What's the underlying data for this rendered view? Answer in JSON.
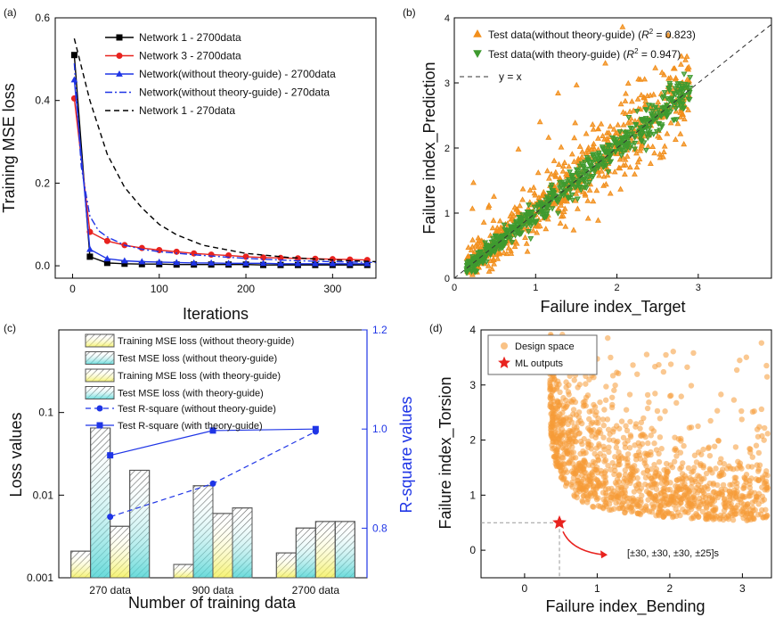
{
  "chart_data": [
    {
      "panel_label": "(a)",
      "type": "line",
      "xlabel": "Iterations",
      "ylabel": "Training MSE loss",
      "xlim": [
        -20,
        350
      ],
      "ylim": [
        -0.03,
        0.6
      ],
      "xticks": [
        "0",
        "100",
        "200",
        "300"
      ],
      "yticks": [
        "0.0",
        "0.2",
        "0.4",
        "0.6"
      ],
      "legend_position": "top-right",
      "series": [
        {
          "name": "Network 1 - 2700data",
          "color": "#000000",
          "dash": "solid",
          "marker": "square",
          "x": [
            2,
            20,
            40,
            60,
            80,
            100,
            120,
            140,
            160,
            180,
            200,
            220,
            240,
            260,
            280,
            300,
            320,
            340
          ],
          "y": [
            0.51,
            0.022,
            0.007,
            0.005,
            0.004,
            0.004,
            0.003,
            0.003,
            0.003,
            0.003,
            0.003,
            0.002,
            0.002,
            0.002,
            0.002,
            0.002,
            0.002,
            0.002
          ]
        },
        {
          "name": "Network 3 - 2700data",
          "color": "#e8231f",
          "dash": "solid",
          "marker": "circle",
          "x": [
            2,
            20,
            40,
            60,
            80,
            100,
            120,
            140,
            160,
            180,
            200,
            220,
            240,
            260,
            280,
            300,
            320,
            340
          ],
          "y": [
            0.405,
            0.082,
            0.06,
            0.05,
            0.043,
            0.038,
            0.034,
            0.03,
            0.027,
            0.025,
            0.022,
            0.02,
            0.019,
            0.018,
            0.017,
            0.016,
            0.015,
            0.014
          ]
        },
        {
          "name": "Network(without theory-guide) - 2700data",
          "color": "#1f35e6",
          "dash": "solid",
          "marker": "triangle",
          "x": [
            2,
            20,
            40,
            60,
            80,
            100,
            120,
            140,
            160,
            180,
            200,
            220,
            240,
            260,
            280,
            300,
            320,
            340
          ],
          "y": [
            0.45,
            0.04,
            0.017,
            0.012,
            0.01,
            0.009,
            0.008,
            0.007,
            0.007,
            0.006,
            0.006,
            0.006,
            0.005,
            0.005,
            0.005,
            0.005,
            0.005,
            0.005
          ]
        },
        {
          "name": "Network(without theory-guide) - 270data",
          "color": "#1f35e6",
          "dash": "dashdot",
          "marker": "none",
          "x": [
            2,
            10,
            20,
            30,
            40,
            60,
            80,
            100,
            150,
            200,
            250,
            300,
            350
          ],
          "y": [
            0.49,
            0.24,
            0.12,
            0.085,
            0.07,
            0.05,
            0.04,
            0.034,
            0.025,
            0.018,
            0.013,
            0.01,
            0.008
          ]
        },
        {
          "name": "Network 1 - 270data",
          "color": "#000000",
          "dash": "dashed",
          "marker": "none",
          "x": [
            2,
            20,
            40,
            60,
            80,
            100,
            120,
            150,
            200,
            250,
            300,
            350
          ],
          "y": [
            0.55,
            0.4,
            0.27,
            0.19,
            0.14,
            0.1,
            0.075,
            0.05,
            0.03,
            0.02,
            0.014,
            0.01
          ]
        }
      ]
    },
    {
      "panel_label": "(b)",
      "type": "scatter",
      "xlabel": "Failure index_Target",
      "ylabel": "Failure index_Prediction",
      "xlim": [
        0,
        3.9
      ],
      "ylim": [
        0,
        4
      ],
      "xticks": [
        "0",
        "1",
        "2",
        "3"
      ],
      "yticks": [
        "0",
        "1",
        "2",
        "3",
        "4"
      ],
      "legend_position": "top",
      "series": [
        {
          "name": "Test data(without theory-guide) (R² = 0.823)",
          "color": "#f28f1c",
          "marker": "triangle-up",
          "scatter_sd": 0.28
        },
        {
          "name": "Test data(with theory-guide) (R² = 0.947)",
          "color": "#3e9a2f",
          "marker": "triangle-down",
          "scatter_sd": 0.12
        }
      ],
      "legend_labels": [
        {
          "lead": "Test data(without theory-guide) (",
          "r": "R",
          "sup": "2",
          "tail": " = 0.823)"
        },
        {
          "lead": "Test data(with theory-guide) (",
          "r": "R",
          "sup": "2",
          "tail": " = 0.947)"
        }
      ],
      "reference_line": {
        "name": "y = x",
        "style": "dashed"
      }
    },
    {
      "panel_label": "(c)",
      "type": "bar",
      "xlabel": "Number of training data",
      "ylabel": "Loss values",
      "y2label": "R-square values",
      "y_scale": "log",
      "ylim": [
        0.001,
        1
      ],
      "y2lim": [
        0.7,
        1.2
      ],
      "yticks": [
        "0.001",
        "0.01",
        "0.1"
      ],
      "y2ticks": [
        "0.8",
        "1.0",
        "1.2"
      ],
      "categories": [
        "270 data",
        "900 data",
        "2700 data"
      ],
      "series": [
        {
          "name": "Training MSE loss (without theory-guide)",
          "color": "#e8e84a",
          "values": [
            0.0021,
            0.00145,
            0.002
          ]
        },
        {
          "name": "Test MSE loss (without theory-guide)",
          "color": "#5fd6d6",
          "values": [
            0.065,
            0.013,
            0.004
          ]
        },
        {
          "name": "Training MSE loss (with theory-guide)",
          "color": "#e8e84a",
          "values": [
            0.0042,
            0.006,
            0.0048
          ]
        },
        {
          "name": "Test MSE loss (with theory-guide)",
          "color": "#5fd6d6",
          "values": [
            0.02,
            0.007,
            0.0048
          ]
        }
      ],
      "line_series": [
        {
          "name": "Test R-square (without theory-guide)",
          "color": "#1f35e6",
          "dash": "dashed",
          "marker": "circle",
          "values": [
            0.823,
            0.89,
            0.995
          ]
        },
        {
          "name": "Test R-square (with theory-guide)",
          "color": "#1f35e6",
          "dash": "solid",
          "marker": "square",
          "values": [
            0.947,
            0.997,
            1.0
          ]
        }
      ]
    },
    {
      "panel_label": "(d)",
      "type": "scatter",
      "xlabel": "Failure index_Bending",
      "ylabel": "Failure index_Torsion",
      "xlim": [
        -0.6,
        3.4
      ],
      "ylim": [
        -0.5,
        4
      ],
      "xticks": [
        "0",
        "1",
        "2",
        "3"
      ],
      "yticks": [
        "0",
        "1",
        "2",
        "3",
        "4"
      ],
      "legend_position": "top-left",
      "series": [
        {
          "name": "Design space",
          "color": "#f59a36",
          "marker": "circle"
        },
        {
          "name": "ML outputs",
          "color": "#e8231f",
          "marker": "star",
          "x": [
            0.48
          ],
          "y": [
            0.5
          ]
        }
      ],
      "annotation": "[±30, ±30, ±30, ±25]s"
    }
  ]
}
